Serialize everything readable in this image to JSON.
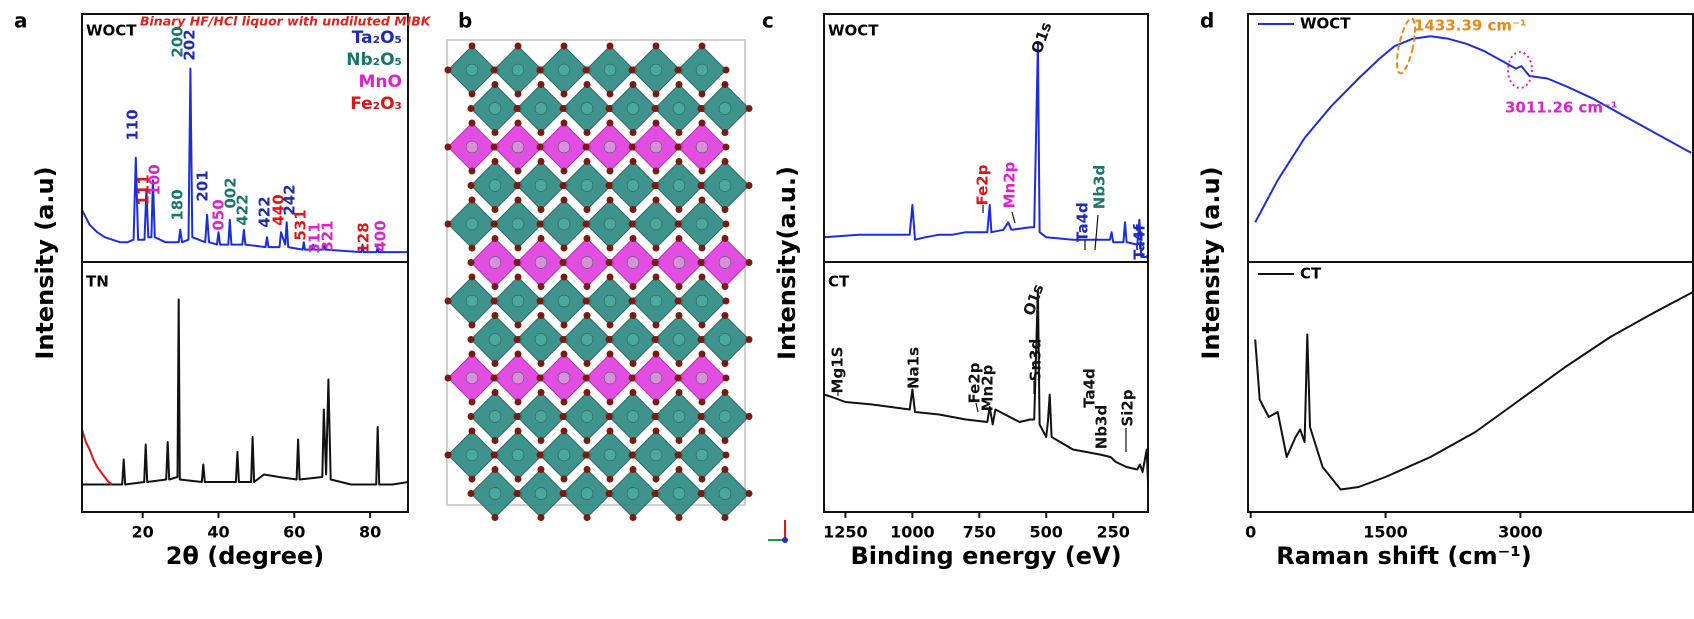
{
  "chart_data": [
    {
      "type": "line",
      "label": "a",
      "xlabel": "2θ (degree)",
      "ylabel": "Intensity (a.u)",
      "xlim": [
        4,
        90
      ],
      "xticks": [
        20,
        40,
        60,
        80
      ],
      "subtitle": "Binary HF/HCl liquor with undiluted MIBK",
      "subtitle_color": "#e0201a",
      "phases": [
        {
          "name": "Ta₂O₅",
          "color": "#1f2bb8"
        },
        {
          "name": "Nb₂O₅",
          "color": "#16786c"
        },
        {
          "name": "MnO",
          "color": "#e020d0"
        },
        {
          "name": "Fe₂O₃",
          "color": "#e01414"
        }
      ],
      "peak_labels": [
        {
          "text": "110",
          "color": "#1f2bb8"
        },
        {
          "text": "111",
          "color": "#e01414"
        },
        {
          "text": "100",
          "color": "#e020d0"
        },
        {
          "text": "180",
          "color": "#16786c"
        },
        {
          "text": "200",
          "color": "#16786c"
        },
        {
          "text": "202",
          "color": "#1f2bb8"
        },
        {
          "text": "201",
          "color": "#1f2bb8"
        },
        {
          "text": "050",
          "color": "#e020d0"
        },
        {
          "text": "002",
          "color": "#16786c"
        },
        {
          "text": "422",
          "color": "#16786c"
        },
        {
          "text": "422",
          "color": "#1f2bb8"
        },
        {
          "text": "440",
          "color": "#e01414"
        },
        {
          "text": "242",
          "color": "#1f2bb8"
        },
        {
          "text": "531",
          "color": "#e01414"
        },
        {
          "text": "311",
          "color": "#e020d0"
        },
        {
          "text": "321",
          "color": "#e020d0"
        },
        {
          "text": "128",
          "color": "#e01414"
        },
        {
          "text": "400",
          "color": "#e020d0"
        }
      ],
      "subplots": [
        {
          "title": "WOCT",
          "ylim": [
            0,
            100
          ],
          "series": [
            {
              "color": "#1a2ee0",
              "x": [
                4,
                6,
                8,
                10,
                12,
                14,
                16,
                17.6,
                18.2,
                18.8,
                20.5,
                21,
                21.5,
                22.3,
                22.7,
                23.2,
                26,
                29.5,
                29.9,
                30.4,
                32.1,
                32.6,
                33.1,
                36.5,
                37,
                37.5,
                39.6,
                40,
                40.4,
                42.6,
                43,
                43.4,
                46.3,
                46.7,
                47.1,
                52.4,
                52.8,
                53.2,
                56.1,
                56.5,
                57.6,
                58,
                58.4,
                62.2,
                62.5,
                62.8,
                64.7,
                65,
                65.3,
                67.7,
                68,
                68.3,
                77.7,
                78,
                78.3,
                81.7,
                82,
                82.3,
                86,
                90
              ],
              "values": [
                21,
                15,
                12,
                10,
                9,
                8,
                8,
                9,
                42,
                9,
                9,
                29,
                10,
                10,
                33,
                10,
                8,
                8,
                13,
                8,
                9,
                78,
                10,
                8,
                19,
                8,
                7,
                12,
                7,
                7,
                17,
                7,
                7,
                13,
                7,
                6,
                10,
                6,
                6,
                12,
                7,
                16,
                6,
                5,
                8,
                5,
                5,
                7,
                5,
                5,
                7,
                5,
                4,
                7,
                4,
                4,
                6,
                4,
                4,
                4
              ]
            }
          ]
        },
        {
          "title": "TN",
          "ylim": [
            0,
            100
          ],
          "series": [
            {
              "color": "#111111",
              "x": [
                4,
                8,
                12,
                14.6,
                15,
                15.4,
                20.4,
                20.8,
                21.2,
                26.2,
                26.6,
                27,
                29.2,
                29.5,
                29.8,
                35.6,
                36,
                36.4,
                44.6,
                45,
                45.4,
                48.6,
                49,
                49.4,
                52,
                56,
                60.6,
                61,
                61.4,
                67.4,
                67.8,
                68.4,
                69,
                69.6,
                75,
                81.6,
                82,
                82.4,
                86,
                90
              ],
              "values": [
                11,
                11,
                11,
                11,
                21,
                11,
                12,
                27,
                12,
                13,
                28,
                13,
                14,
                85,
                13,
                12,
                19,
                12,
                12,
                24,
                12,
                12,
                30,
                12,
                15,
                14,
                13,
                29,
                13,
                14,
                41,
                15,
                53,
                13,
                11,
                11,
                34,
                11,
                11,
                12
              ]
            },
            {
              "color": "#e8141a",
              "x": [
                4,
                5,
                6,
                7,
                8,
                9,
                10,
                11,
                12
              ],
              "values": [
                33,
                28,
                25,
                21,
                18,
                16,
                14,
                12,
                11
              ]
            }
          ]
        }
      ]
    },
    {
      "type": "structure",
      "label": "b"
    },
    {
      "type": "line",
      "label": "c",
      "xlabel": "Binding energy (eV)",
      "ylabel": "Intensity(a.u.)",
      "xlim": [
        1330,
        120
      ],
      "xticks": [
        1250,
        1000,
        750,
        500,
        250
      ],
      "subplots": [
        {
          "title": "WOCT",
          "ylim": [
            0,
            100
          ],
          "annotations": [
            {
              "text": "O1s",
              "color": "#111111"
            },
            {
              "text": "Fe2p",
              "color": "#e01414"
            },
            {
              "text": "Mn2p",
              "color": "#e020d0"
            },
            {
              "text": "Ta4d",
              "color": "#1f2bb8"
            },
            {
              "text": "Nb3d",
              "color": "#16786c"
            },
            {
              "text": "Ta4f",
              "color": "#1f2bb8"
            }
          ],
          "series": [
            {
              "color": "#1a2ee0",
              "x": [
                1330,
                1200,
                1100,
                1010,
                1000,
                990,
                950,
                900,
                850,
                800,
                720,
                711,
                705,
                660,
                642,
                630,
                560,
                545,
                531,
                525,
                500,
                400,
                300,
                262,
                256,
                250,
                230,
                212,
                206,
                200,
                160,
                152,
                145,
                125,
                120
              ],
              "values": [
                10,
                11,
                11,
                11,
                23,
                9,
                10,
                11,
                11,
                12,
                12,
                23,
                12,
                13,
                16,
                13,
                14,
                14,
                88,
                12,
                10,
                9,
                9,
                9,
                12,
                8,
                8,
                8,
                16,
                8,
                7,
                17,
                2,
                2,
                3
              ]
            }
          ]
        },
        {
          "title": "CT",
          "ylim": [
            0,
            100
          ],
          "annotations": [
            {
              "text": "O1s",
              "color": "#111111"
            },
            {
              "text": "Mg1S",
              "color": "#111111"
            },
            {
              "text": "Na1s",
              "color": "#111111"
            },
            {
              "text": "Fe2p",
              "color": "#111111"
            },
            {
              "text": "Mn2p",
              "color": "#111111"
            },
            {
              "text": "Sn3d",
              "color": "#111111"
            },
            {
              "text": "Ta4d",
              "color": "#111111"
            },
            {
              "text": "Nb3d",
              "color": "#111111"
            },
            {
              "text": "Si2p",
              "color": "#111111"
            }
          ],
          "series": [
            {
              "color": "#111111",
              "x": [
                1330,
                1300,
                1250,
                1150,
                1080,
                1010,
                1000,
                990,
                900,
                800,
                720,
                711,
                700,
                690,
                600,
                560,
                545,
                531,
                525,
                500,
                494,
                487,
                480,
                400,
                300,
                260,
                240,
                200,
                160,
                150,
                140,
                125,
                120
              ],
              "values": [
                47,
                46,
                44,
                43,
                42,
                41,
                49,
                40,
                39,
                37,
                36,
                42,
                35,
                41,
                36,
                37,
                37,
                89,
                35,
                30,
                36,
                47,
                30,
                25,
                23,
                22,
                20,
                18,
                17,
                19,
                16,
                25,
                12
              ]
            }
          ]
        }
      ]
    },
    {
      "type": "line",
      "label": "d",
      "xlabel": "Raman shift (cm⁻¹)",
      "ylabel": "Intensity (a.u)",
      "xlim": [
        -30,
        4920
      ],
      "xticks": [
        0,
        1500,
        3000
      ],
      "subplots": [
        {
          "ylim": [
            0,
            100
          ],
          "annotations": [
            {
              "text": "1433.39 cm⁻¹",
              "color": "#e88a1a"
            },
            {
              "text": "3011.26 cm⁻¹",
              "color": "#e020d0"
            }
          ],
          "series": [
            {
              "name": "WOCT",
              "color": "#1a2ee0",
              "x": [
                50,
                300,
                600,
                900,
                1200,
                1433,
                1600,
                1800,
                2000,
                2200,
                2400,
                2600,
                2800,
                2950,
                3011,
                3100,
                3300,
                3500,
                3800,
                4200,
                4600,
                4900
              ],
              "values": [
                16,
                33,
                50,
                63,
                74,
                82,
                87,
                90,
                91,
                90,
                88,
                85,
                81,
                78,
                79,
                75,
                74,
                71,
                66,
                58,
                50,
                44
              ]
            }
          ]
        },
        {
          "ylim": [
            0,
            100
          ],
          "series": [
            {
              "name": "CT",
              "color": "#111111",
              "x": [
                50,
                100,
                200,
                300,
                400,
                500,
                550,
                600,
                630,
                660,
                800,
                1000,
                1200,
                1500,
                2000,
                2500,
                3000,
                3500,
                4000,
                4500,
                4920
              ],
              "values": [
                69,
                45,
                38,
                40,
                22,
                30,
                33,
                28,
                71,
                34,
                18,
                9,
                10,
                14,
                22,
                32,
                45,
                58,
                70,
                80,
                88
              ]
            }
          ]
        }
      ]
    }
  ]
}
